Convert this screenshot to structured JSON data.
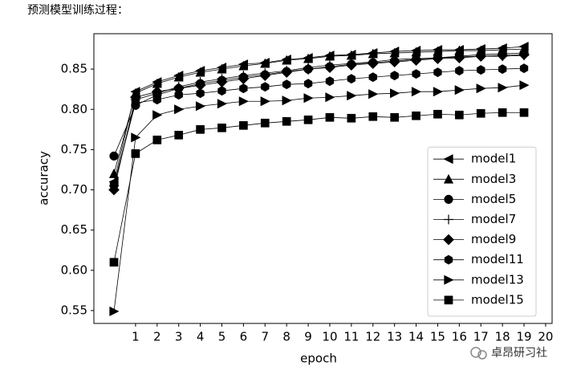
{
  "header": {
    "caption": "预测模型训练过程："
  },
  "watermark": {
    "text": "卓昂研习社"
  },
  "chart_data": {
    "type": "line",
    "xlabel": "epoch",
    "ylabel": "accuracy",
    "x": [
      0,
      1,
      2,
      3,
      4,
      5,
      6,
      7,
      8,
      9,
      10,
      11,
      12,
      13,
      14,
      15,
      16,
      17,
      18,
      19
    ],
    "xlim": [
      -0.93,
      20.3
    ],
    "xticks": [
      1,
      2,
      3,
      4,
      5,
      6,
      7,
      8,
      9,
      10,
      11,
      12,
      13,
      14,
      15,
      16,
      17,
      18,
      19,
      20
    ],
    "ylim": [
      0.534,
      0.894
    ],
    "yticks": [
      0.55,
      {
        "value": 0.6,
        "label": "0.60"
      },
      0.65,
      {
        "value": 0.7,
        "label": "0.70"
      },
      0.75,
      {
        "value": 0.8,
        "label": "0.80"
      },
      0.85
    ],
    "grid": false,
    "legend": "lower right",
    "series": [
      {
        "name": "model1",
        "color": "#000000",
        "marker": "<",
        "values": [
          0.71,
          0.822,
          0.834,
          0.842,
          0.848,
          0.852,
          0.856,
          0.858,
          0.862,
          0.864,
          0.867,
          0.868,
          0.87,
          0.872,
          0.873,
          0.874,
          0.874,
          0.875,
          0.876,
          0.878
        ]
      },
      {
        "name": "model3",
        "color": "#000000",
        "marker": "^",
        "values": [
          0.72,
          0.82,
          0.832,
          0.84,
          0.846,
          0.85,
          0.854,
          0.857,
          0.861,
          0.863,
          0.866,
          0.867,
          0.869,
          0.87,
          0.871,
          0.872,
          0.873,
          0.873,
          0.874,
          0.875
        ]
      },
      {
        "name": "model5",
        "color": "#000000",
        "marker": "o",
        "values": [
          0.742,
          0.805,
          0.818,
          0.826,
          0.832,
          0.836,
          0.84,
          0.843,
          0.847,
          0.85,
          0.853,
          0.856,
          0.858,
          0.86,
          0.862,
          0.864,
          0.866,
          0.868,
          0.869,
          0.87
        ]
      },
      {
        "name": "model7",
        "color": "#000000",
        "marker": "+",
        "values": [
          0.705,
          0.812,
          0.82,
          0.828,
          0.834,
          0.838,
          0.842,
          0.845,
          0.848,
          0.852,
          0.855,
          0.857,
          0.859,
          0.862,
          0.863,
          0.864,
          0.865,
          0.866,
          0.866,
          0.867
        ]
      },
      {
        "name": "model9",
        "color": "#000000",
        "marker": "D",
        "values": [
          0.7,
          0.815,
          0.822,
          0.826,
          0.83,
          0.834,
          0.838,
          0.842,
          0.846,
          0.85,
          0.852,
          0.855,
          0.857,
          0.859,
          0.861,
          0.863,
          0.864,
          0.866,
          0.867,
          0.868
        ]
      },
      {
        "name": "model11",
        "color": "#000000",
        "marker": "h",
        "values": [
          0.706,
          0.808,
          0.812,
          0.818,
          0.82,
          0.823,
          0.826,
          0.828,
          0.831,
          0.832,
          0.835,
          0.838,
          0.84,
          0.842,
          0.844,
          0.846,
          0.848,
          0.849,
          0.85,
          0.851
        ]
      },
      {
        "name": "model13",
        "color": "#000000",
        "marker": ">",
        "values": [
          0.549,
          0.765,
          0.793,
          0.8,
          0.804,
          0.807,
          0.81,
          0.81,
          0.811,
          0.814,
          0.815,
          0.817,
          0.819,
          0.82,
          0.822,
          0.822,
          0.824,
          0.826,
          0.827,
          0.83
        ]
      },
      {
        "name": "model15",
        "color": "#000000",
        "marker": "s",
        "values": [
          0.61,
          0.745,
          0.762,
          0.768,
          0.775,
          0.777,
          0.78,
          0.783,
          0.785,
          0.787,
          0.79,
          0.789,
          0.791,
          0.79,
          0.792,
          0.794,
          0.793,
          0.795,
          0.796,
          0.796
        ]
      }
    ]
  }
}
